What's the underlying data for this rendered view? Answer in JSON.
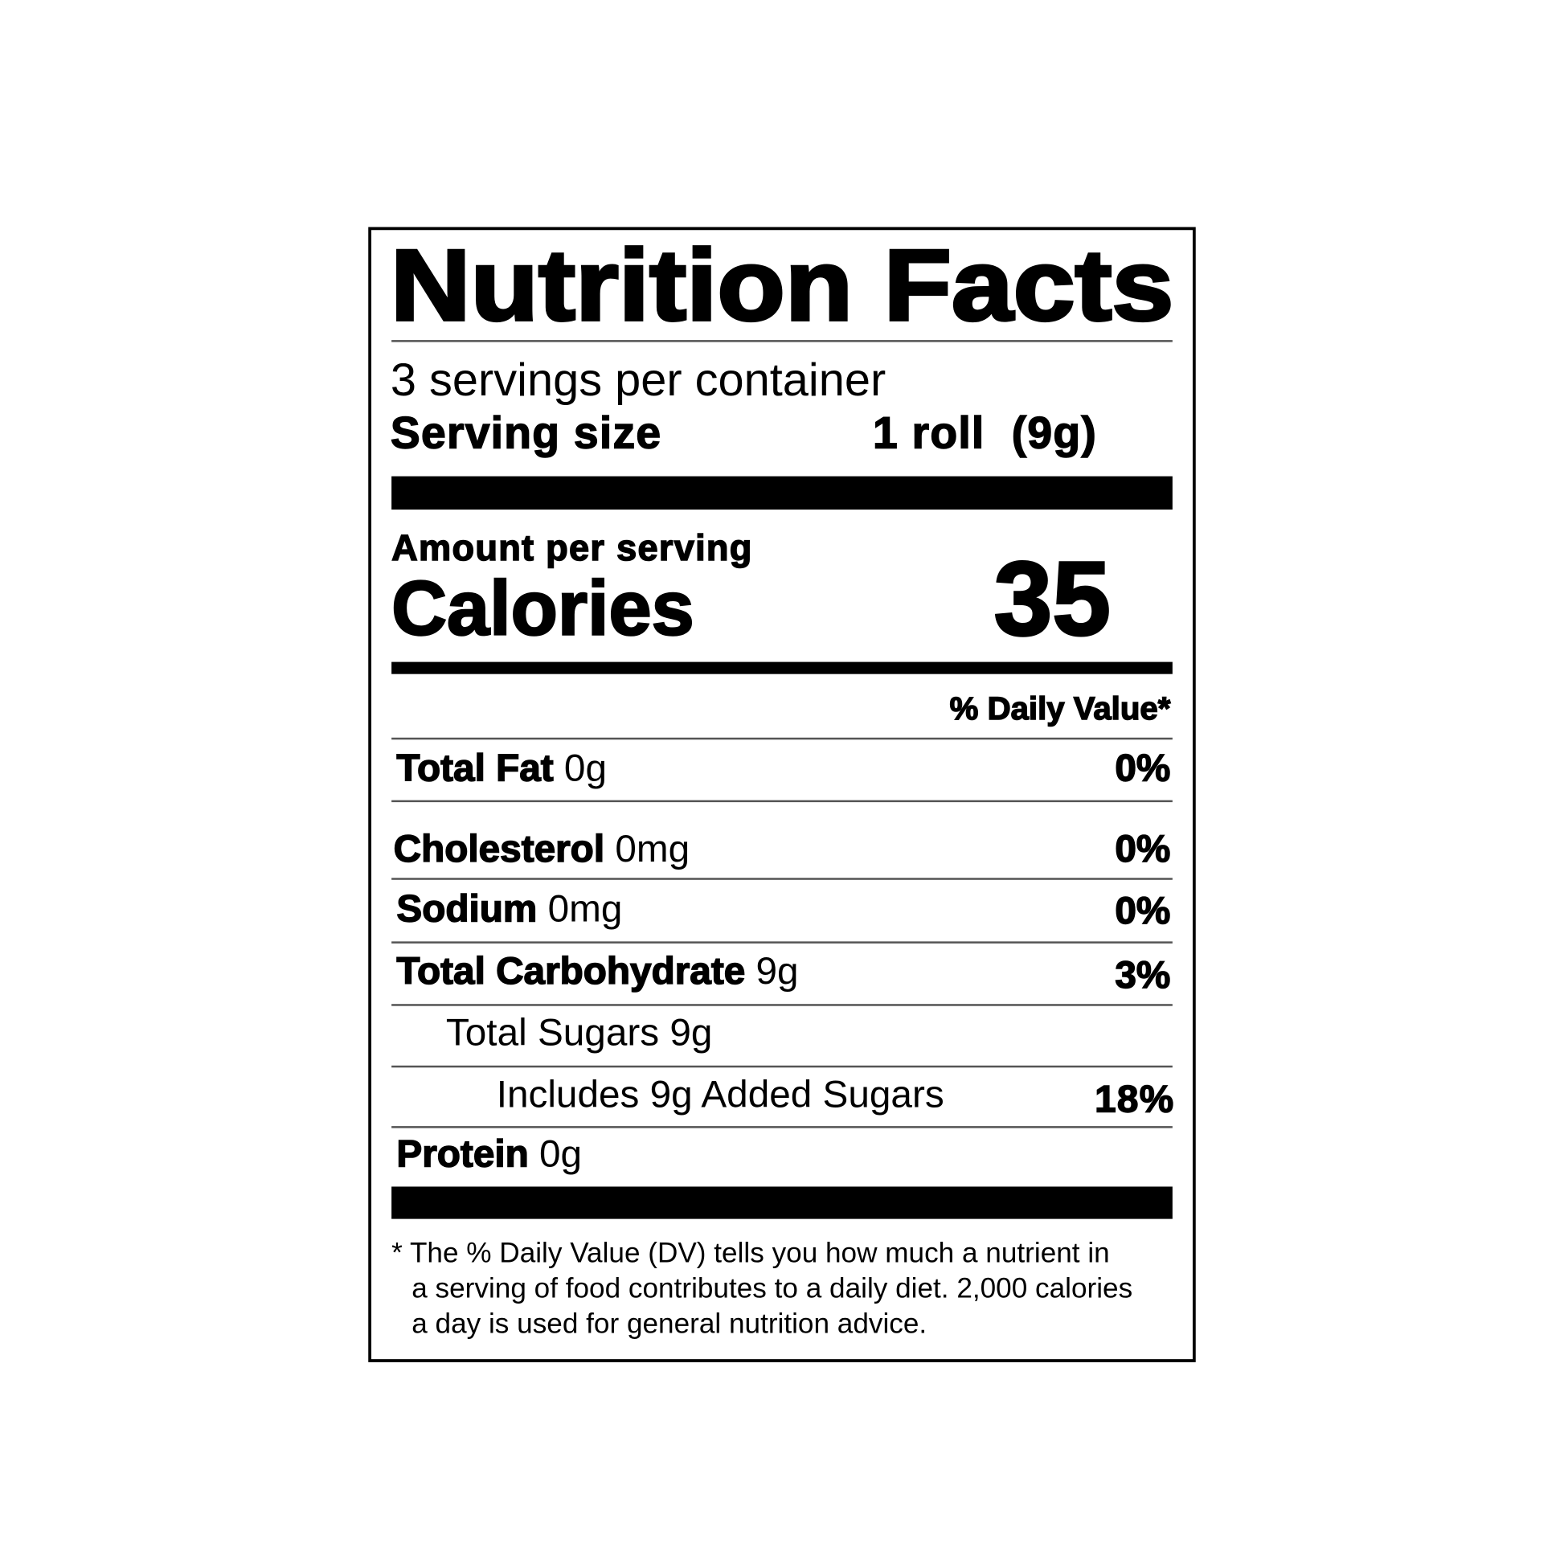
{
  "label": {
    "title": "Nutrition Facts",
    "servings_per_container": "3 servings per container",
    "serving_size_label": "Serving size",
    "serving_size_value": "1 roll  (9g)",
    "amount_per_serving": "Amount per serving",
    "calories_label": "Calories",
    "calories_value": "35",
    "daily_value_header": "% Daily Value*",
    "nutrients": [
      {
        "name": "Total Fat",
        "amount": "0g",
        "dv": "0%"
      },
      {
        "name": "Cholesterol",
        "amount": "0mg",
        "dv": "0%"
      },
      {
        "name": "Sodium",
        "amount": "0mg",
        "dv": "0%"
      },
      {
        "name": "Total Carbohydrate",
        "amount": "9g",
        "dv": "3%"
      },
      {
        "name": "Total Sugars 9g",
        "amount": "",
        "dv": ""
      },
      {
        "name": "Includes 9g Added Sugars",
        "amount": "",
        "dv": "18%"
      },
      {
        "name": "Protein",
        "amount": "0g",
        "dv": ""
      }
    ],
    "footnote": [
      "* The % Daily Value (DV) tells you how much a nutrient in",
      "a serving of food contributes to a daily diet. 2,000 calories",
      "a day is used for general nutrition advice."
    ]
  }
}
